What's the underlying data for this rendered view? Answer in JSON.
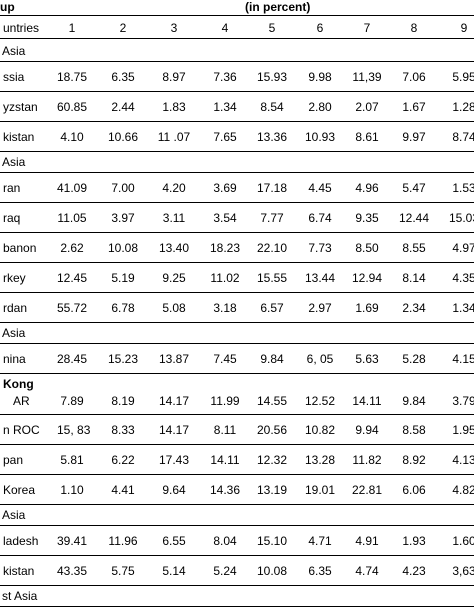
{
  "header": {
    "group_fragment": "up",
    "unit_label": "(in percent)",
    "countries_fragment": "untries",
    "columns": [
      "1",
      "2",
      "3",
      "4",
      "5",
      "6",
      "7",
      "8",
      "9"
    ]
  },
  "rows": [
    {
      "kind": "group",
      "label": "Asia"
    },
    {
      "kind": "data",
      "label": "ssia",
      "values": [
        "18.75",
        "6.35",
        "8.97",
        "7.36",
        "15.93",
        "9.98",
        "11,39",
        "7.06",
        "5.95"
      ]
    },
    {
      "kind": "data",
      "label": "yzstan",
      "values": [
        "60.85",
        "2.44",
        "1.83",
        "1.34",
        "8.54",
        "2.80",
        "2.07",
        "1.67",
        "1.28"
      ]
    },
    {
      "kind": "data",
      "label": "kistan",
      "values": [
        "4.10",
        "10.66",
        "11 .07",
        "7.65",
        "13.36",
        "10.93",
        "8.61",
        "9.97",
        "8.74"
      ]
    },
    {
      "kind": "group",
      "label": "Asia"
    },
    {
      "kind": "data",
      "label": "ran",
      "values": [
        "41.09",
        "7.00",
        "4.20",
        "3.69",
        "17.18",
        "4.45",
        "4.96",
        "5.47",
        "1.53"
      ]
    },
    {
      "kind": "data",
      "label": "raq",
      "values": [
        "11.05",
        "3.97",
        "3.11",
        "3.54",
        "7.77",
        "6.74",
        "9.35",
        "12.44",
        "15.03"
      ]
    },
    {
      "kind": "data",
      "label": "banon",
      "values": [
        "2.62",
        "10.08",
        "13.40",
        "18.23",
        "22.10",
        "7.73",
        "8.50",
        "8.55",
        "4.97"
      ]
    },
    {
      "kind": "data",
      "label": "rkey",
      "values": [
        "12.45",
        "5.19",
        "9.25",
        "11.02",
        "15.55",
        "13.44",
        "12.94",
        "8.14",
        "4.35"
      ]
    },
    {
      "kind": "data",
      "label": "rdan",
      "values": [
        "55.72",
        "6.78",
        "5.08",
        "3.18",
        "6.57",
        "2.97",
        "1.69",
        "2.34",
        "1.34"
      ]
    },
    {
      "kind": "group",
      "label": "Asia"
    },
    {
      "kind": "data",
      "label": "nina",
      "values": [
        "28.45",
        "15.23",
        "13.87",
        "7.45",
        "9.84",
        "6, 05",
        "5.63",
        "5.28",
        "4.15"
      ]
    },
    {
      "kind": "data2",
      "label1": "Kong",
      "label2": "AR",
      "values": [
        "7.89",
        "8.19",
        "14.17",
        "11.99",
        "14.55",
        "12.52",
        "14.11",
        "9.84",
        "3.79"
      ]
    },
    {
      "kind": "data",
      "label": "n ROC",
      "prefix": "15, 83",
      "values": [
        "",
        "8.33",
        "14.17",
        "8.11",
        "20.56",
        "10.82",
        "9.94",
        "8.58",
        "1.95"
      ]
    },
    {
      "kind": "data",
      "label": "pan",
      "values": [
        "5.81",
        "6.22",
        "17.43",
        "14.11",
        "12.32",
        "13.28",
        "11.82",
        "8.92",
        "4.13"
      ]
    },
    {
      "kind": "data",
      "label": "Korea",
      "values": [
        "1.10",
        "4.41",
        "9.64",
        "14.36",
        "13.19",
        "19.01",
        "22.81",
        "6.06",
        "4.82"
      ]
    },
    {
      "kind": "group",
      "label": "Asia"
    },
    {
      "kind": "data",
      "label": "ladesh",
      "values": [
        "39.41",
        "11.96",
        "6.55",
        "8.04",
        "15.10",
        "4.71",
        "4.91",
        "1.93",
        "1.60"
      ]
    },
    {
      "kind": "data",
      "label": "kistan",
      "values": [
        "43.35",
        "5.75",
        "5.14",
        "5.24",
        "10.08",
        "6.35",
        "4.74",
        "4.23",
        "3,63"
      ]
    },
    {
      "kind": "group",
      "label": "st Asia"
    }
  ]
}
